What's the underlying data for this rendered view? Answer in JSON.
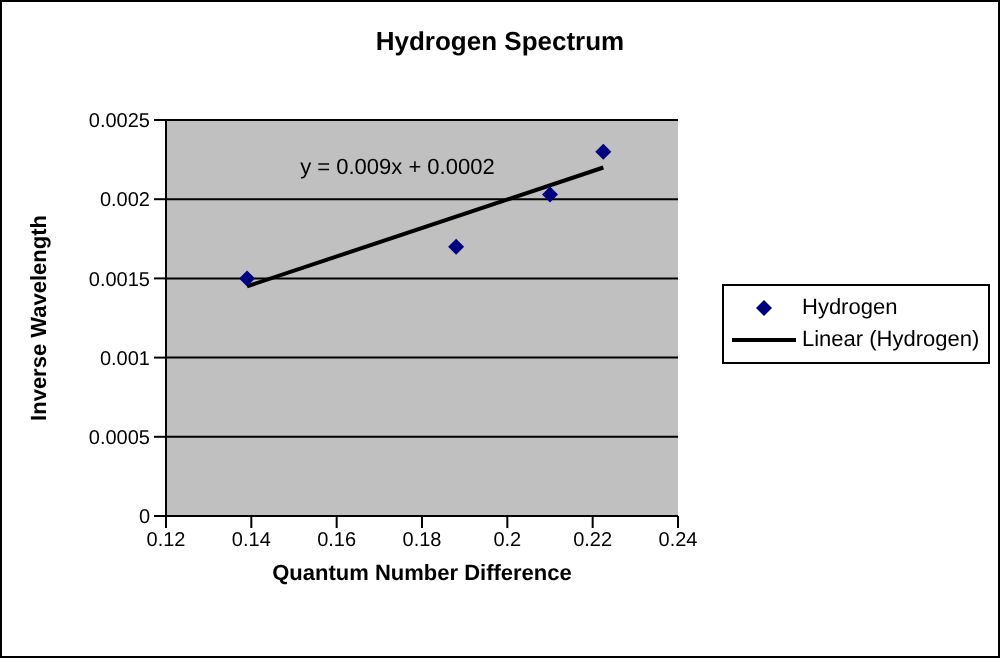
{
  "chart_data": {
    "type": "scatter",
    "title": "Hydrogen Spectrum",
    "xlabel": "Quantum Number Difference",
    "ylabel": "Inverse Wavelength",
    "annotations": [
      "y = 0.009x + 0.0002"
    ],
    "series": [
      {
        "name": "Hydrogen",
        "color": "#000080",
        "marker": "diamond",
        "x": [
          0.139,
          0.188,
          0.21,
          0.2225
        ],
        "values": [
          0.0015,
          0.0017,
          0.00203,
          0.0023
        ]
      },
      {
        "name": "Linear (Hydrogen)",
        "type": "line",
        "color": "#000000",
        "marker": "none",
        "x": [
          0.139,
          0.2225
        ],
        "values": [
          0.00145,
          0.0022
        ]
      }
    ],
    "xlim": [
      0.12,
      0.24
    ],
    "xticks": [
      0.12,
      0.14,
      0.16,
      0.18,
      0.2,
      0.22,
      0.24
    ],
    "ylim": [
      0,
      0.0025
    ],
    "yticks": [
      0,
      0.0005,
      0.001,
      0.0015,
      0.002,
      0.0025
    ],
    "grid": "y",
    "legend": "right"
  }
}
